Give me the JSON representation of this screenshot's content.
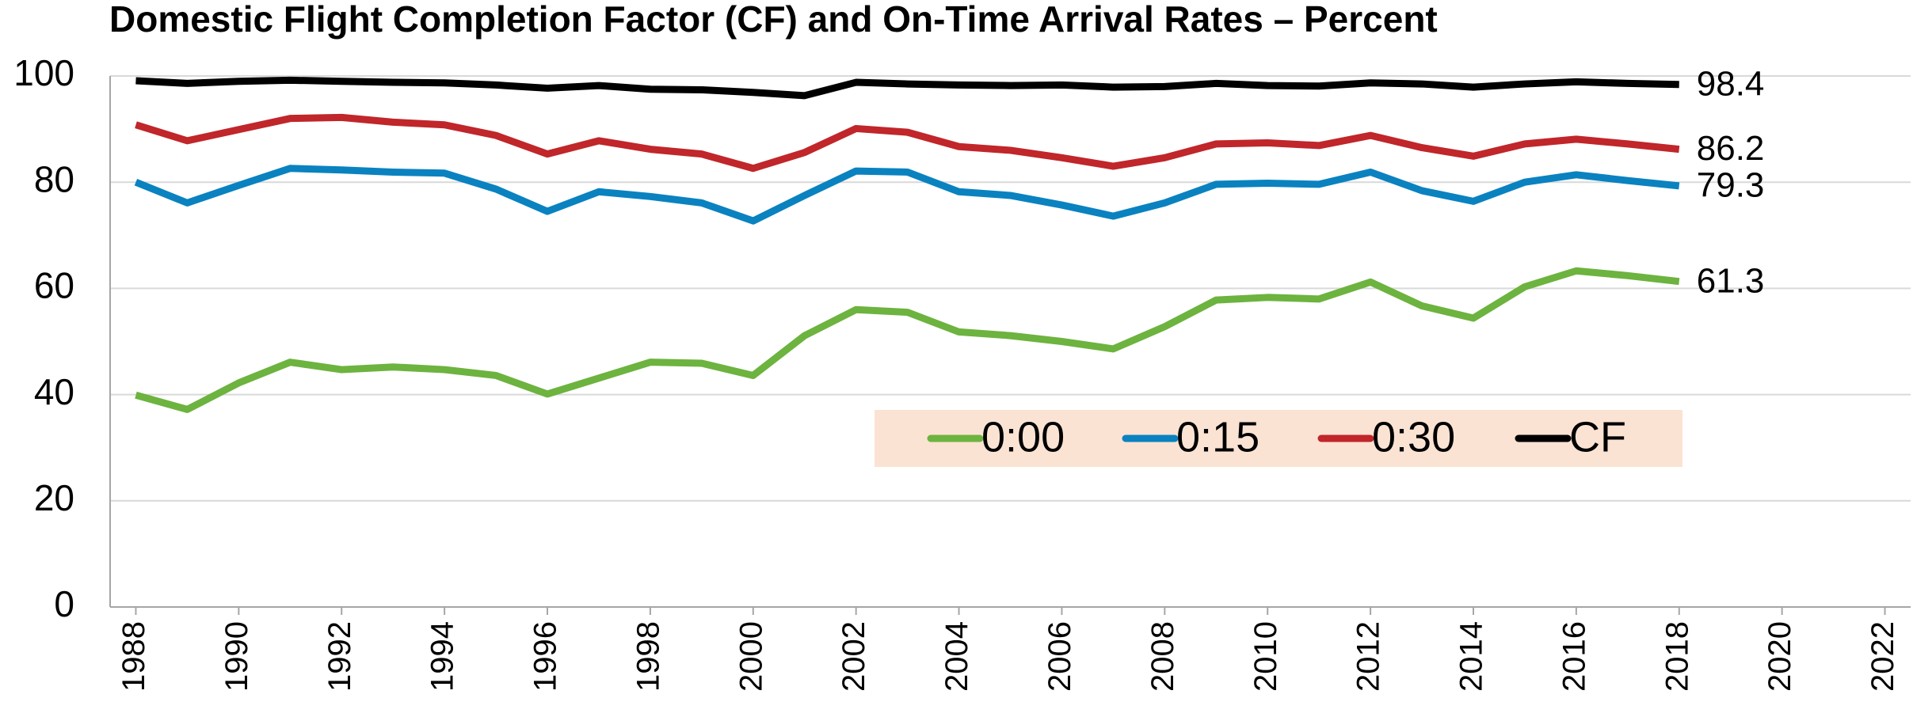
{
  "chart_data": {
    "type": "line",
    "title": "Domestic Flight Completion Factor (CF) and On-Time Arrival Rates – Percent",
    "x": [
      1988,
      1989,
      1990,
      1991,
      1992,
      1993,
      1994,
      1995,
      1996,
      1997,
      1998,
      1999,
      2000,
      2001,
      2002,
      2003,
      2004,
      2005,
      2006,
      2007,
      2008,
      2009,
      2010,
      2011,
      2012,
      2013,
      2014,
      2015,
      2016,
      2017,
      2018
    ],
    "series": [
      {
        "name": "0:00",
        "color": "#6db33f",
        "values": [
          39.9,
          37.2,
          42.2,
          46.1,
          44.7,
          45.2,
          44.7,
          43.6,
          40.1,
          43.1,
          46.1,
          45.9,
          43.6,
          51.1,
          56.0,
          55.5,
          51.8,
          51.1,
          50.0,
          48.6,
          52.8,
          57.8,
          58.3,
          58.0,
          61.2,
          56.7,
          54.4,
          60.3,
          63.3,
          62.4,
          61.3
        ]
      },
      {
        "name": "0:15",
        "color": "#0a82c0",
        "values": [
          80.0,
          76.1,
          79.4,
          82.6,
          82.3,
          81.9,
          81.7,
          78.7,
          74.5,
          78.2,
          77.3,
          76.1,
          72.7,
          77.5,
          82.1,
          81.9,
          78.2,
          77.5,
          75.7,
          73.6,
          76.1,
          79.6,
          79.8,
          79.6,
          81.9,
          78.4,
          76.4,
          80.0,
          81.4,
          80.3,
          79.3
        ]
      },
      {
        "name": "0:30",
        "color": "#c0262a",
        "values": [
          90.8,
          87.8,
          89.9,
          92.0,
          92.2,
          91.3,
          90.8,
          88.8,
          85.3,
          87.8,
          86.2,
          85.3,
          82.6,
          85.6,
          90.1,
          89.4,
          86.7,
          86.0,
          84.6,
          83.0,
          84.6,
          87.2,
          87.4,
          86.9,
          88.8,
          86.5,
          84.9,
          87.2,
          88.1,
          87.2,
          86.2
        ]
      },
      {
        "name": "CF",
        "color": "#000000",
        "values": [
          99.1,
          98.6,
          99.0,
          99.2,
          99.0,
          98.8,
          98.7,
          98.3,
          97.7,
          98.2,
          97.5,
          97.4,
          96.9,
          96.3,
          98.8,
          98.5,
          98.3,
          98.2,
          98.3,
          97.9,
          98.0,
          98.6,
          98.2,
          98.1,
          98.7,
          98.5,
          97.9,
          98.5,
          98.9,
          98.6,
          98.4
        ]
      }
    ],
    "xlim": [
      1987.5,
      2022.5
    ],
    "xticks": [
      1988,
      1990,
      1992,
      1994,
      1996,
      1998,
      2000,
      2002,
      2004,
      2006,
      2008,
      2010,
      2012,
      2014,
      2016,
      2018,
      2020,
      2022
    ],
    "ylim": [
      0,
      100
    ],
    "yticks": [
      0,
      20,
      40,
      60,
      80,
      100
    ],
    "grid": true,
    "legend_background": "#fbe3d3"
  }
}
